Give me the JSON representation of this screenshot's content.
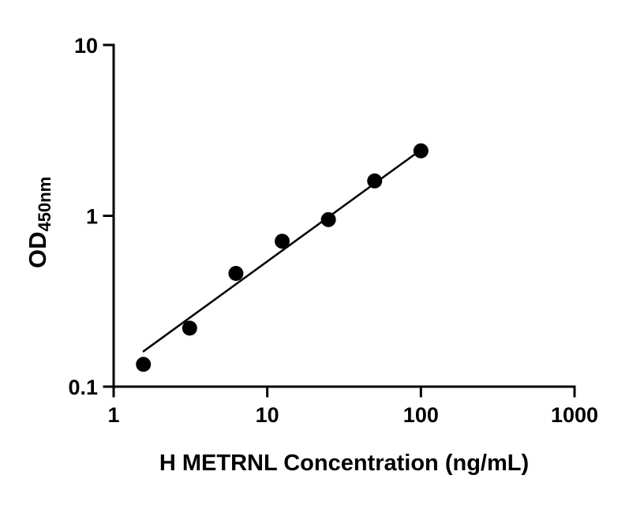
{
  "chart_data": {
    "type": "scatter",
    "xlabel": "H METRNL Concentration (ng/mL)",
    "ylabel_main": "OD",
    "ylabel_sub": "450nm",
    "x_scale": "log",
    "y_scale": "log",
    "xlim": [
      1,
      1000
    ],
    "ylim": [
      0.1,
      10
    ],
    "x_ticks": [
      1,
      10,
      100,
      1000
    ],
    "x_tick_labels": [
      "1",
      "10",
      "100",
      "1000"
    ],
    "y_ticks": [
      0.1,
      1,
      10
    ],
    "y_tick_labels": [
      "0.1",
      "1",
      "10"
    ],
    "grid": false,
    "legend": "none",
    "points": [
      {
        "x": 1.5625,
        "y": 0.135
      },
      {
        "x": 3.125,
        "y": 0.22
      },
      {
        "x": 6.25,
        "y": 0.46
      },
      {
        "x": 12.5,
        "y": 0.71
      },
      {
        "x": 25,
        "y": 0.95
      },
      {
        "x": 50,
        "y": 1.6
      },
      {
        "x": 100,
        "y": 2.4
      }
    ],
    "fit_line": {
      "x1": 1.55,
      "y1": 0.16,
      "x2": 103,
      "y2": 2.48
    },
    "marker_color": "#000000",
    "line_color": "#000000",
    "axis_color": "#000000",
    "background_color": "#ffffff"
  }
}
